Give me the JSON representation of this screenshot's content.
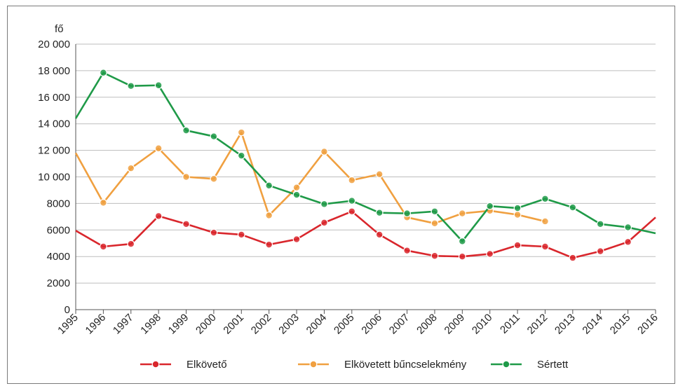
{
  "chart_data": {
    "type": "line",
    "title": "",
    "xlabel": "",
    "ylabel": "fő",
    "x": [
      "1995",
      "1996",
      "1997",
      "1998",
      "1999",
      "2000",
      "2001",
      "2002",
      "2003",
      "2004",
      "2005",
      "2006",
      "2007",
      "2008",
      "2009",
      "2010",
      "2011",
      "2012",
      "2013",
      "2014",
      "2015",
      "2016"
    ],
    "ylim": [
      0,
      20000
    ],
    "yticks": [
      0,
      2000,
      4000,
      6000,
      8000,
      10000,
      12000,
      14000,
      16000,
      18000,
      20000
    ],
    "ytick_labels": [
      "0",
      "2000",
      "4000",
      "6000",
      "8000",
      "10 000",
      "12 000",
      "14 000",
      "16 000",
      "18 000",
      "20 000"
    ],
    "grid": "horizontal",
    "legend_position": "bottom",
    "series": [
      {
        "name": "Elkövető",
        "color": "#d9262c",
        "values": [
          5950,
          4750,
          4950,
          7050,
          6450,
          5800,
          5650,
          4900,
          5300,
          6550,
          7400,
          5650,
          4450,
          4050,
          4000,
          4200,
          4850,
          4750,
          3900,
          4400,
          5100,
          6950
        ]
      },
      {
        "name": "Elkövetett bűncselekmény",
        "color": "#f0a040",
        "values": [
          11800,
          8050,
          10650,
          12150,
          10000,
          9850,
          13350,
          7100,
          9200,
          11900,
          9750,
          10200,
          6950,
          6500,
          7250,
          7450,
          7150,
          6650,
          null,
          null,
          null,
          null
        ]
      },
      {
        "name": "Sértett",
        "color": "#1f9a48",
        "values": [
          14400,
          17850,
          16850,
          16900,
          13500,
          13050,
          11600,
          9350,
          8650,
          7950,
          8200,
          7300,
          7250,
          7400,
          5150,
          7800,
          7650,
          8350,
          7700,
          6450,
          6200,
          5750
        ]
      }
    ]
  }
}
